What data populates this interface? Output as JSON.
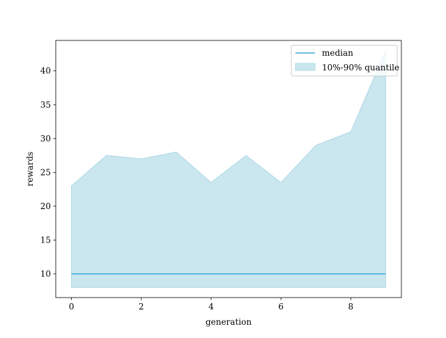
{
  "chart_data": {
    "type": "area",
    "xlabel": "generation",
    "ylabel": "rewards",
    "xlim": [
      -0.45,
      9.45
    ],
    "ylim": [
      6.5,
      44.5
    ],
    "x_ticks": [
      0,
      2,
      4,
      6,
      8
    ],
    "y_ticks": [
      10,
      15,
      20,
      25,
      30,
      35,
      40
    ],
    "x": [
      0,
      1,
      2,
      3,
      4,
      5,
      6,
      7,
      8,
      9
    ],
    "series": [
      {
        "name": "median",
        "kind": "line",
        "color": "#3aa9d6",
        "values": [
          10,
          10,
          10,
          10,
          10,
          10,
          10,
          10,
          10,
          10
        ]
      },
      {
        "name": "10%-90% quantile",
        "kind": "band",
        "color": "#add8e6",
        "lower": [
          8,
          8,
          8,
          8,
          8,
          8,
          8,
          8,
          8,
          8
        ],
        "upper": [
          23,
          27.5,
          27,
          28,
          23.5,
          27.5,
          23.5,
          29,
          31,
          43
        ]
      }
    ],
    "grid": false,
    "legend_position": "top-right"
  }
}
